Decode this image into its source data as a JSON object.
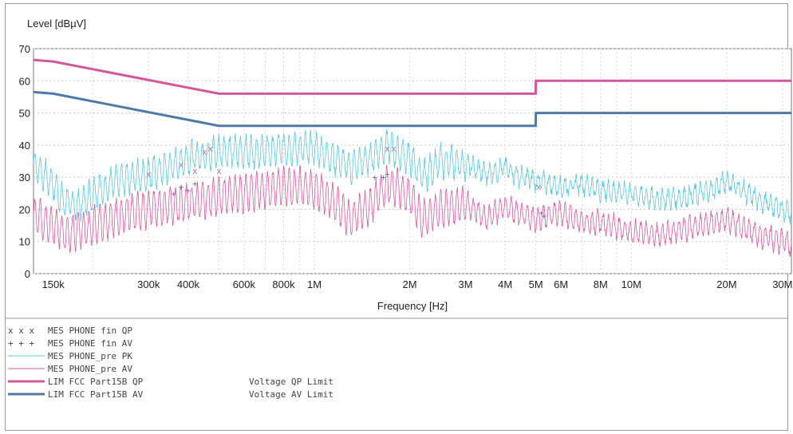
{
  "chart_data": {
    "type": "line",
    "ylabel": "Level [dBµV]",
    "xlabel": "Frequency [Hz]",
    "x_scale": "log",
    "xlim": [
      130000,
      32000000
    ],
    "ylim": [
      0,
      70
    ],
    "grid": true,
    "y_ticks": [
      0,
      10,
      20,
      30,
      40,
      50,
      60,
      70
    ],
    "x_ticks": [
      {
        "value": 150000,
        "label": "150k"
      },
      {
        "value": 300000,
        "label": "300k"
      },
      {
        "value": 400000,
        "label": "400k"
      },
      {
        "value": 600000,
        "label": "600k"
      },
      {
        "value": 800000,
        "label": "800k"
      },
      {
        "value": 1000000,
        "label": "1M"
      },
      {
        "value": 2000000,
        "label": "2M"
      },
      {
        "value": 3000000,
        "label": "3M"
      },
      {
        "value": 4000000,
        "label": "4M"
      },
      {
        "value": 5000000,
        "label": "5M"
      },
      {
        "value": 6000000,
        "label": "6M"
      },
      {
        "value": 8000000,
        "label": "8M"
      },
      {
        "value": 10000000,
        "label": "10M"
      },
      {
        "value": 20000000,
        "label": "20M"
      },
      {
        "value": 30000000,
        "label": "30M"
      }
    ],
    "series": [
      {
        "name": "MES PHONE_pre PK",
        "color": "#5ac8e0",
        "x": [
          130000,
          150000,
          160000,
          180000,
          200000,
          230000,
          260000,
          300000,
          350000,
          400000,
          450000,
          500000,
          600000,
          700000,
          800000,
          900000,
          1000000,
          1100000,
          1300000,
          1500000,
          1700000,
          1800000,
          2000000,
          2200000,
          2500000,
          3000000,
          3500000,
          4000000,
          4500000,
          5000000,
          6000000,
          7000000,
          8000000,
          10000000,
          12000000,
          15000000,
          18000000,
          20000000,
          25000000,
          30000000,
          32000000
        ],
        "values": [
          34,
          28,
          23,
          21,
          25,
          28,
          30,
          31,
          33,
          36,
          37,
          38,
          38,
          38,
          39,
          39,
          39,
          37,
          33,
          36,
          40,
          38,
          36,
          30,
          35,
          34,
          31,
          33,
          30,
          29,
          27,
          28,
          26,
          25,
          23,
          24,
          26,
          29,
          23,
          20,
          19
        ]
      },
      {
        "name": "MES PHONE_pre AV",
        "color": "#d85a9c",
        "x": [
          130000,
          150000,
          160000,
          180000,
          200000,
          230000,
          260000,
          300000,
          350000,
          400000,
          450000,
          500000,
          600000,
          700000,
          800000,
          900000,
          1000000,
          1100000,
          1300000,
          1500000,
          1700000,
          1800000,
          2000000,
          2200000,
          2500000,
          3000000,
          3500000,
          4000000,
          4500000,
          5000000,
          6000000,
          7000000,
          8000000,
          10000000,
          12000000,
          15000000,
          18000000,
          20000000,
          25000000,
          30000000,
          32000000
        ],
        "values": [
          18,
          15,
          13,
          13,
          15,
          17,
          19,
          20,
          21,
          22,
          23,
          24,
          25,
          26,
          27,
          27,
          26,
          24,
          17,
          21,
          28,
          27,
          24,
          17,
          20,
          22,
          17,
          21,
          18,
          17,
          19,
          16,
          16,
          13,
          12,
          14,
          16,
          17,
          12,
          10,
          9
        ]
      },
      {
        "name": "LIM FCC Part15B QP",
        "color": "#d4579a",
        "x": [
          130000,
          150000,
          500000,
          4990000,
          5000000,
          32000000
        ],
        "values": [
          66.5,
          66,
          56,
          56,
          60,
          60
        ]
      },
      {
        "name": "LIM FCC Part15B AV",
        "color": "#4f7aa8",
        "x": [
          130000,
          150000,
          500000,
          4990000,
          5000000,
          32000000
        ],
        "values": [
          56.5,
          56,
          46,
          46,
          50,
          50
        ]
      }
    ],
    "markers": {
      "qp_x": [
        300000,
        380000,
        420000,
        450000,
        470000,
        500000,
        1700000,
        1780000,
        5100000
      ],
      "qp_y": [
        31,
        34,
        32,
        38,
        39,
        32,
        39,
        39,
        27
      ],
      "av_x": [
        360000,
        380000,
        400000,
        420000,
        1550000,
        1650000,
        1700000,
        5200000,
        5300000
      ],
      "av_y": [
        25,
        27,
        26,
        28,
        30,
        30,
        31,
        19,
        18
      ]
    }
  },
  "legend": [
    {
      "symbol": "x x x",
      "text": "MES   PHONE fin QP",
      "extra": "",
      "color": "#999999",
      "style": "x"
    },
    {
      "symbol": "+ + +",
      "text": "MES   PHONE fin AV",
      "extra": "",
      "color": "#999999",
      "style": "plus"
    },
    {
      "symbol": "",
      "text": "MES   PHONE_pre PK",
      "extra": "",
      "color": "#5ac8e0",
      "style": "thin"
    },
    {
      "symbol": "",
      "text": "MES   PHONE_pre AV",
      "extra": "",
      "color": "#d85a9c",
      "style": "thin"
    },
    {
      "symbol": "",
      "text": "LIM   FCC Part15B QP",
      "extra": "Voltage QP Limit",
      "color": "#d4579a",
      "style": "thick"
    },
    {
      "symbol": "",
      "text": "LIM   FCC Part15B AV",
      "extra": "Voltage AV Limit",
      "color": "#4f7aa8",
      "style": "thick"
    }
  ]
}
